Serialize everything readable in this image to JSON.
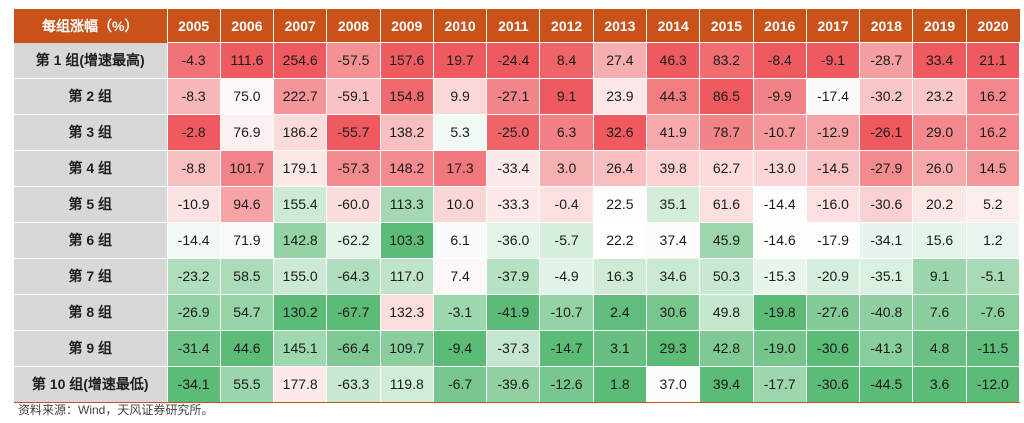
{
  "header": {
    "corner_label": "每组涨幅（%）"
  },
  "source_note": "资料来源：Wind，天风证券研究所。",
  "colors": {
    "header_bg": "#c8521a",
    "row_label_bg": "#d8d8d8",
    "high": "#ee5a5f",
    "mid": "#ffffff",
    "low": "#5dbb78"
  },
  "chart_data": {
    "type": "heatmap",
    "title": "",
    "x": [
      "2005",
      "2006",
      "2007",
      "2008",
      "2009",
      "2010",
      "2011",
      "2012",
      "2013",
      "2014",
      "2015",
      "2016",
      "2017",
      "2018",
      "2019",
      "2020"
    ],
    "y": [
      "第 1 组(增速最高)",
      "第 2 组",
      "第 3 组",
      "第 4 组",
      "第 5 组",
      "第 6 组",
      "第 7 组",
      "第 8 组",
      "第 9 组",
      "第 10 组(增速最低)"
    ],
    "values": [
      [
        -4.3,
        111.6,
        254.6,
        -57.5,
        157.6,
        19.7,
        -24.4,
        8.4,
        27.4,
        46.3,
        83.2,
        -8.4,
        -9.1,
        -28.7,
        33.4,
        21.1
      ],
      [
        -8.3,
        75.0,
        222.7,
        -59.1,
        154.8,
        9.9,
        -27.1,
        9.1,
        23.9,
        44.3,
        86.5,
        -9.9,
        -17.4,
        -30.2,
        23.2,
        16.2
      ],
      [
        -2.8,
        76.9,
        186.2,
        -55.7,
        138.2,
        5.3,
        -25.0,
        6.3,
        32.6,
        41.9,
        78.7,
        -10.7,
        -12.9,
        -26.1,
        29.0,
        16.2
      ],
      [
        -8.8,
        101.7,
        179.1,
        -57.3,
        148.2,
        17.3,
        -33.4,
        3.0,
        26.4,
        39.8,
        62.7,
        -13.0,
        -14.5,
        -27.9,
        26.0,
        14.5
      ],
      [
        -10.9,
        94.6,
        155.4,
        -60.0,
        113.3,
        10.0,
        -33.3,
        -0.4,
        22.5,
        35.1,
        61.6,
        -14.4,
        -16.0,
        -30.6,
        20.2,
        5.2
      ],
      [
        -14.4,
        71.9,
        142.8,
        -62.2,
        103.3,
        6.1,
        -36.0,
        -5.7,
        22.2,
        37.4,
        45.9,
        -14.6,
        -17.9,
        -34.1,
        15.6,
        1.2
      ],
      [
        -23.2,
        58.5,
        155.0,
        -64.3,
        117.0,
        7.4,
        -37.9,
        -4.9,
        16.3,
        34.6,
        50.3,
        -15.3,
        -20.9,
        -35.1,
        9.1,
        -5.1
      ],
      [
        -26.9,
        54.7,
        130.2,
        -67.7,
        132.3,
        -3.1,
        -41.9,
        -10.7,
        2.4,
        30.6,
        49.8,
        -19.8,
        -27.6,
        -40.8,
        7.6,
        -7.6
      ],
      [
        -31.4,
        44.6,
        145.1,
        -66.4,
        109.7,
        -9.4,
        -37.3,
        -14.7,
        3.1,
        29.3,
        42.8,
        -19.0,
        -30.6,
        -41.3,
        4.8,
        -11.5
      ],
      [
        -34.1,
        55.5,
        177.8,
        -63.3,
        119.8,
        -6.7,
        -39.6,
        -12.6,
        1.8,
        37.0,
        39.4,
        -17.7,
        -30.6,
        -44.5,
        3.6,
        -12.0
      ]
    ],
    "color_scale": "per-column red (high) → white → green (low)",
    "grid": true,
    "legend": "none"
  }
}
